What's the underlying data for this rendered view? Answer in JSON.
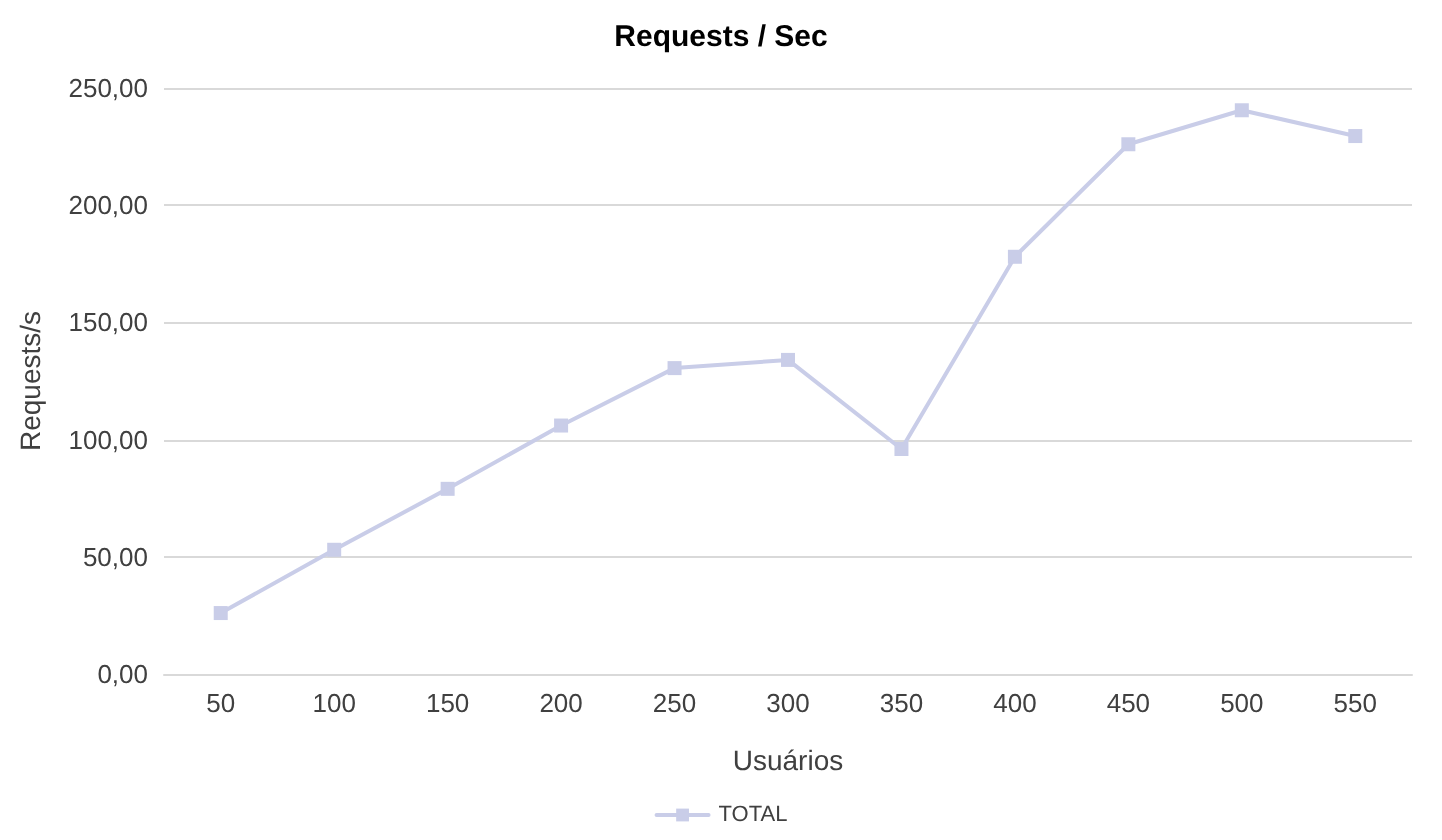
{
  "chart_data": {
    "type": "line",
    "title": "Requests / Sec",
    "xlabel": "Usuários",
    "ylabel": "Requests/s",
    "categories": [
      "50",
      "100",
      "150",
      "200",
      "250",
      "300",
      "350",
      "400",
      "450",
      "500",
      "550"
    ],
    "series": [
      {
        "name": "TOTAL",
        "color": "#c9cde8",
        "values": [
          26,
          53,
          79,
          106,
          130.5,
          134,
          96,
          178,
          226,
          240.5,
          229.5
        ]
      }
    ],
    "ylim": [
      0,
      250
    ],
    "yticks": [
      {
        "value": 0,
        "label": "0,00"
      },
      {
        "value": 50,
        "label": "50,00"
      },
      {
        "value": 100,
        "label": "100,00"
      },
      {
        "value": 150,
        "label": "150,00"
      },
      {
        "value": 200,
        "label": "200,00"
      },
      {
        "value": 250,
        "label": "250,00"
      }
    ],
    "grid": "y",
    "legend": "bottom",
    "marker": "square",
    "line_style": "solid"
  }
}
